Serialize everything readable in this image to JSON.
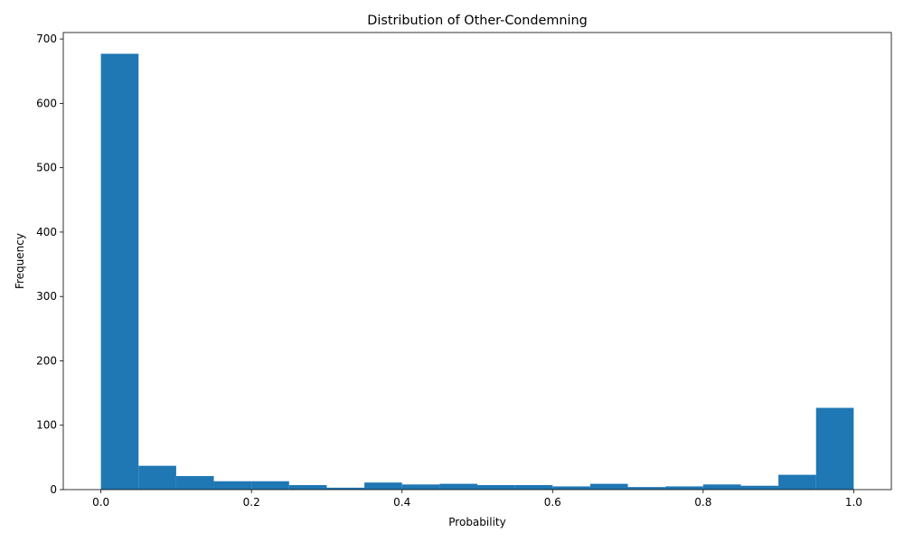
{
  "chart_data": {
    "type": "bar",
    "title": "Distribution of Other-Condemning",
    "xlabel": "Probability",
    "ylabel": "Frequency",
    "xlim": [
      -0.05,
      1.05
    ],
    "ylim": [
      0,
      710
    ],
    "xticks": [
      0.0,
      0.2,
      0.4,
      0.6,
      0.8,
      1.0
    ],
    "xtick_labels": [
      "0.0",
      "0.2",
      "0.4",
      "0.6",
      "0.8",
      "1.0"
    ],
    "yticks": [
      0,
      100,
      200,
      300,
      400,
      500,
      600,
      700
    ],
    "ytick_labels": [
      "0",
      "100",
      "200",
      "300",
      "400",
      "500",
      "600",
      "700"
    ],
    "bin_edges": [
      0.0,
      0.05,
      0.1,
      0.15,
      0.2,
      0.25,
      0.3,
      0.35,
      0.4,
      0.45,
      0.5,
      0.55,
      0.6,
      0.65,
      0.7,
      0.75,
      0.8,
      0.85,
      0.9,
      0.95,
      1.0
    ],
    "values": [
      677,
      37,
      21,
      13,
      13,
      7,
      3,
      11,
      8,
      9,
      7,
      7,
      5,
      9,
      4,
      5,
      8,
      6,
      23,
      127
    ],
    "bar_color": "#1f77b4",
    "grid": false,
    "legend": false
  }
}
